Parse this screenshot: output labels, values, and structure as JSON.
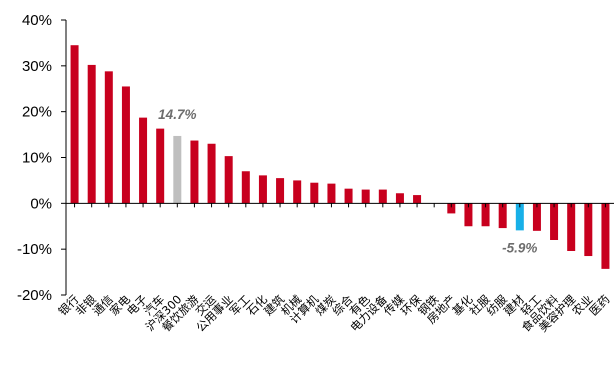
{
  "chart_data": {
    "type": "bar",
    "categories": [
      "银行",
      "非银",
      "通信",
      "家电",
      "电子",
      "汽车",
      "沪深300",
      "餐饮旅游",
      "交运",
      "公用事业",
      "军工",
      "石化",
      "建筑",
      "机械",
      "计算机",
      "煤炭",
      "综合",
      "有色",
      "电力设备",
      "传媒",
      "环保",
      "钢铁",
      "房地产",
      "基化",
      "社服",
      "纺服",
      "建材",
      "轻工",
      "食品饮料",
      "美容护理",
      "农业",
      "医药"
    ],
    "values": [
      34.5,
      30.2,
      28.8,
      25.5,
      18.7,
      16.3,
      14.7,
      13.7,
      13.0,
      10.3,
      7.0,
      6.1,
      5.5,
      5.0,
      4.5,
      4.3,
      3.2,
      3.0,
      3.0,
      2.2,
      1.8,
      0.0,
      -2.2,
      -5.0,
      -5.0,
      -5.4,
      -5.9,
      -6.0,
      -8.0,
      -10.4,
      -11.5,
      -14.3
    ],
    "ylim": [
      -20,
      40
    ],
    "yticks": [
      "40%",
      "30%",
      "20%",
      "10%",
      "0%",
      "-10%",
      "-20%"
    ],
    "ytick_values": [
      40,
      30,
      20,
      10,
      0,
      -10,
      -20
    ],
    "grid": false,
    "annotations": [
      {
        "text": "14.7%",
        "category": "沪深300"
      },
      {
        "text": "-5.9%",
        "category": "建材"
      }
    ],
    "colors": {
      "default": "#c8001e",
      "benchmark": "#bfbfbf",
      "highlight": "#18b0e8",
      "axis": "#000000",
      "annotation": "#6d6d6d"
    },
    "bar_colors": [
      "default",
      "default",
      "default",
      "default",
      "default",
      "default",
      "benchmark",
      "default",
      "default",
      "default",
      "default",
      "default",
      "default",
      "default",
      "default",
      "default",
      "default",
      "default",
      "default",
      "default",
      "default",
      "default",
      "default",
      "default",
      "default",
      "default",
      "highlight",
      "default",
      "default",
      "default",
      "default",
      "default"
    ]
  }
}
